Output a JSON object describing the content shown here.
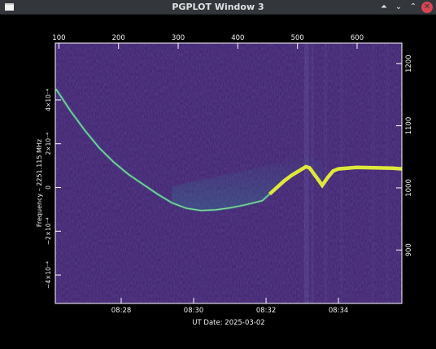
{
  "window": {
    "title": "PGPLOT Window 3",
    "icon": "window-icon",
    "buttons": [
      "keep-above-icon",
      "minimize-icon",
      "maximize-icon",
      "close-icon"
    ],
    "glyphs": {
      "keep_above": "⏶",
      "minimize": "⌄",
      "maximize": "⌃",
      "close": "✕"
    }
  },
  "chart_data": {
    "type": "heatmap",
    "colors": {
      "background": "#3b1f6b",
      "trace": "#dfe83a",
      "trace_dim": "#2fa88a"
    },
    "top_axis": {
      "ticks": [
        100,
        200,
        300,
        400,
        500,
        600
      ],
      "range": [
        94,
        675
      ]
    },
    "right_axis": {
      "ticks": [
        900,
        1000,
        1100,
        1200
      ],
      "range": [
        814,
        1233
      ]
    },
    "left_axis": {
      "label": "Frequency – 2251.115 MHz",
      "ticks": [
        "4×10⁻⁴",
        "2×10⁻⁴",
        "0",
        "−2×10⁻⁴",
        "−4×10⁻⁴"
      ],
      "tick_values": [
        4,
        2,
        0,
        -2,
        -4
      ],
      "range": [
        -5.3,
        6.6
      ]
    },
    "bottom_axis": {
      "label": "UT Date: 2025-03-02",
      "ticks": [
        "08:28",
        "08:30",
        "08:32",
        "08:34"
      ],
      "tick_values": [
        28,
        30,
        32,
        34
      ],
      "range": [
        26.18,
        35.75
      ]
    },
    "trace": {
      "x": [
        26.2,
        26.6,
        27.0,
        27.4,
        27.8,
        28.2,
        28.6,
        29.0,
        29.4,
        29.8,
        30.2,
        30.6,
        31.0,
        31.4,
        31.7,
        31.9,
        32.1,
        32.3,
        32.5,
        32.7,
        32.9,
        33.1,
        33.2,
        33.4,
        33.55,
        33.7,
        33.85,
        34.0,
        34.5,
        35.0,
        35.5,
        35.75
      ],
      "y": [
        4.5,
        3.5,
        2.6,
        1.8,
        1.15,
        0.6,
        0.15,
        -0.3,
        -0.7,
        -0.95,
        -1.05,
        -1.02,
        -0.93,
        -0.8,
        -0.68,
        -0.6,
        -0.3,
        0.0,
        0.3,
        0.55,
        0.75,
        0.95,
        0.9,
        0.45,
        0.1,
        0.45,
        0.75,
        0.85,
        0.92,
        0.9,
        0.88,
        0.85
      ]
    }
  }
}
